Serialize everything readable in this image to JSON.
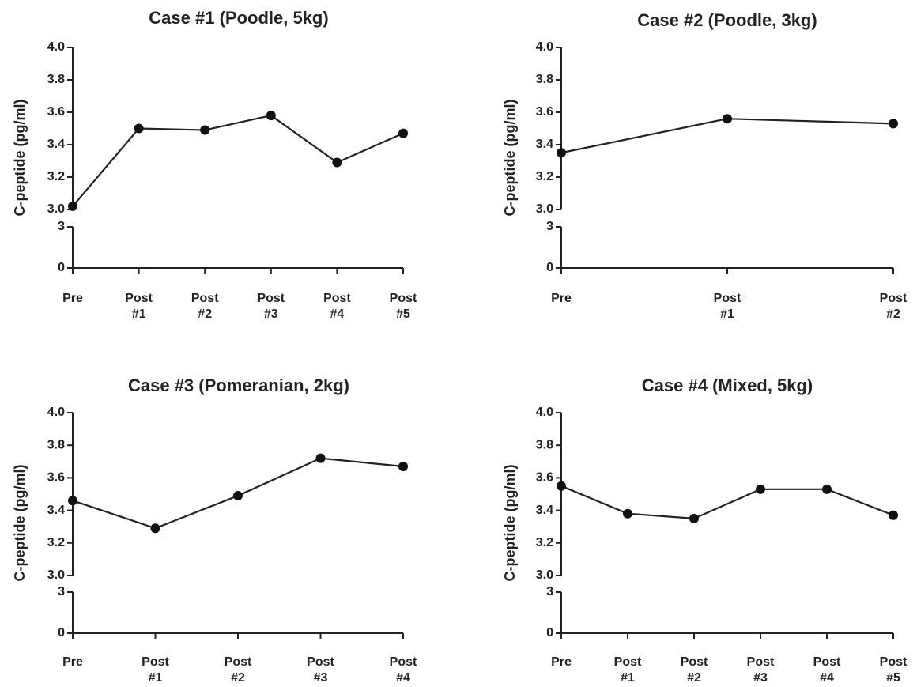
{
  "chart_data": [
    {
      "type": "line",
      "title": "Case #1 (Poodle, 5kg)",
      "ylabel": "C-peptide (pg/ml)",
      "xlabel": "",
      "categories": [
        [
          "Pre"
        ],
        [
          "Post",
          "#1"
        ],
        [
          "Post",
          "#2"
        ],
        [
          "Post",
          "#3"
        ],
        [
          "Post",
          "#4"
        ],
        [
          "Post",
          "#5"
        ]
      ],
      "values": [
        3.02,
        3.5,
        3.49,
        3.58,
        3.29,
        3.47
      ],
      "ylim_upper": [
        3.0,
        4.0
      ],
      "yticks_upper": [
        "3.0",
        "3.2",
        "3.4",
        "3.6",
        "3.8",
        "4.0"
      ],
      "ylim_lower": [
        0,
        3
      ],
      "yticks_lower": [
        "0",
        "3"
      ],
      "axis_break": true,
      "grid": false
    },
    {
      "type": "line",
      "title": "Case #2 (Poodle, 3kg)",
      "ylabel": "C-peptide (pg/ml)",
      "xlabel": "",
      "categories": [
        [
          "Pre"
        ],
        [
          "Post",
          "#1"
        ],
        [
          "Post",
          "#2"
        ]
      ],
      "values": [
        3.35,
        3.56,
        3.53
      ],
      "ylim_upper": [
        3.0,
        4.0
      ],
      "yticks_upper": [
        "3.0",
        "3.2",
        "3.4",
        "3.6",
        "3.8",
        "4.0"
      ],
      "ylim_lower": [
        0,
        3
      ],
      "yticks_lower": [
        "0",
        "3"
      ],
      "axis_break": true,
      "grid": false
    },
    {
      "type": "line",
      "title": "Case #3 (Pomeranian, 2kg)",
      "ylabel": "C-peptide (pg/ml)",
      "xlabel": "",
      "categories": [
        [
          "Pre"
        ],
        [
          "Post",
          "#1"
        ],
        [
          "Post",
          "#2"
        ],
        [
          "Post",
          "#3"
        ],
        [
          "Post",
          "#4"
        ]
      ],
      "values": [
        3.46,
        3.29,
        3.49,
        3.72,
        3.67
      ],
      "ylim_upper": [
        3.0,
        4.0
      ],
      "yticks_upper": [
        "3.0",
        "3.2",
        "3.4",
        "3.6",
        "3.8",
        "4.0"
      ],
      "ylim_lower": [
        0,
        3
      ],
      "yticks_lower": [
        "0",
        "3"
      ],
      "axis_break": true,
      "grid": false
    },
    {
      "type": "line",
      "title": "Case #4  (Mixed, 5kg)",
      "ylabel": "C-peptide (pg/ml)",
      "xlabel": "",
      "categories": [
        [
          "Pre"
        ],
        [
          "Post",
          "#1"
        ],
        [
          "Post",
          "#2"
        ],
        [
          "Post",
          "#3"
        ],
        [
          "Post",
          "#4"
        ],
        [
          "Post",
          "#5"
        ]
      ],
      "values": [
        3.55,
        3.38,
        3.35,
        3.53,
        3.53,
        3.37
      ],
      "ylim_upper": [
        3.0,
        4.0
      ],
      "yticks_upper": [
        "3.0",
        "3.2",
        "3.4",
        "3.6",
        "3.8",
        "4.0"
      ],
      "ylim_lower": [
        0,
        3
      ],
      "yticks_lower": [
        "0",
        "3"
      ],
      "axis_break": true,
      "grid": false
    }
  ]
}
